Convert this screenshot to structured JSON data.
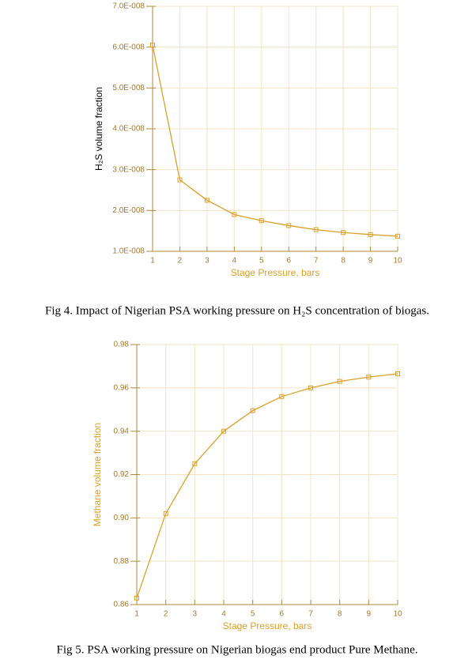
{
  "chart_data": [
    {
      "type": "line",
      "x_label": "Stage Pressure, bars",
      "y_label": "H₂S volume fraction",
      "color": "#d9a02a",
      "x": [
        1,
        2,
        3,
        4,
        5,
        6,
        7,
        8,
        9,
        10
      ],
      "values": [
        6.05e-08,
        2.75e-08,
        2.25e-08,
        1.9e-08,
        1.75e-08,
        1.63e-08,
        1.53e-08,
        1.46e-08,
        1.41e-08,
        1.37e-08
      ],
      "xlim": [
        1,
        10
      ],
      "xticks": [
        1,
        2,
        3,
        4,
        5,
        6,
        7,
        8,
        9,
        10
      ],
      "ylim": [
        1e-08,
        7e-08
      ],
      "yticks": [
        {
          "value": 1e-08,
          "label": "1.0E-008"
        },
        {
          "value": 2e-08,
          "label": "2.0E-008"
        },
        {
          "value": 3e-08,
          "label": "3.0E-008"
        },
        {
          "value": 4e-08,
          "label": "4.0E-008"
        },
        {
          "value": 5e-08,
          "label": "5.0E-008"
        },
        {
          "value": 6e-08,
          "label": "6.0E-008"
        },
        {
          "value": 7e-08,
          "label": "7.0E-008"
        }
      ],
      "grid": true
    },
    {
      "type": "line",
      "x_label": "Stage Pressure, bars",
      "y_label": "Methane volume fraction",
      "color": "#d9a02a",
      "x": [
        1,
        2,
        3,
        4,
        5,
        6,
        7,
        8,
        9,
        10
      ],
      "values": [
        0.863,
        0.902,
        0.925,
        0.94,
        0.9495,
        0.956,
        0.96,
        0.963,
        0.965,
        0.9665
      ],
      "xlim": [
        1,
        10
      ],
      "xticks": [
        1,
        2,
        3,
        4,
        5,
        6,
        7,
        8,
        9,
        10
      ],
      "ylim": [
        0.86,
        0.98
      ],
      "yticks": [
        0.86,
        0.88,
        {
          "value": 0.9,
          "label": "0.90"
        },
        0.92,
        0.94,
        0.96,
        0.98
      ],
      "grid": true
    }
  ],
  "captions": [
    "Fig 4. Impact of Nigerian PSA working pressure on H₂S concentration of biogas.",
    "Fig 5. PSA working pressure on Nigerian biogas end product Pure Methane."
  ]
}
